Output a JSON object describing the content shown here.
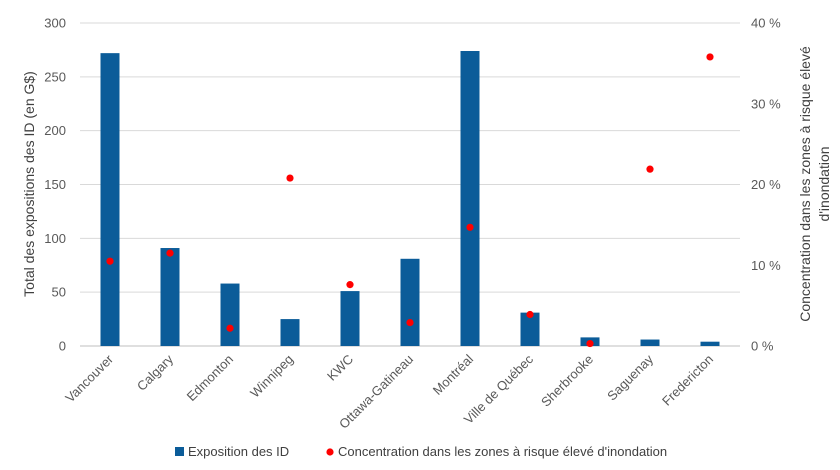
{
  "chart_data": {
    "type": "bar",
    "categories": [
      "Vancouver",
      "Calgary",
      "Edmonton",
      "Winnipeg",
      "KWC",
      "Ottawa-Gatineau",
      "Montréal",
      "Ville de Québec",
      "Sherbrooke",
      "Saguenay",
      "Fredericton"
    ],
    "series": [
      {
        "name": "Exposition des ID",
        "type": "bar",
        "axis": "left",
        "color": "#0b5c99",
        "values": [
          272,
          91,
          58,
          25,
          51,
          81,
          274,
          31,
          8,
          6,
          4
        ]
      },
      {
        "name": "Concentration dans les zones à risque élevé d'inondation",
        "type": "scatter",
        "axis": "right",
        "color": "#ff0000",
        "values": [
          10.5,
          11.5,
          2.2,
          20.8,
          7.6,
          2.9,
          14.7,
          3.9,
          0.3,
          21.9,
          35.8
        ]
      }
    ],
    "y_left": {
      "label": "Total des expositions des ID (en G$)",
      "range": [
        0,
        300
      ],
      "ticks": [
        "0",
        "50",
        "100",
        "150",
        "200",
        "250",
        "300"
      ]
    },
    "y_right": {
      "label_lines": [
        "Concentration dans les zones à risque élevé",
        "d'inondation"
      ],
      "range": [
        0,
        40
      ],
      "ticks": [
        "0 %",
        "10 %",
        "20 %",
        "30 %",
        "40 %"
      ]
    },
    "grid": true,
    "legend_position": "bottom"
  }
}
